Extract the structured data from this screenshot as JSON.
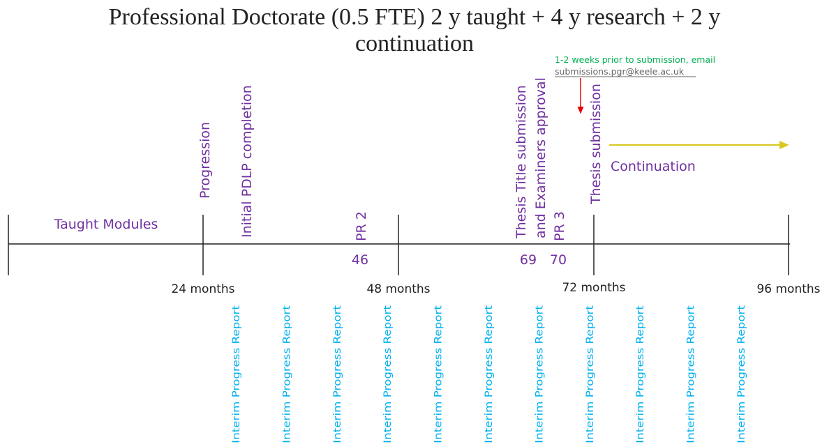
{
  "title": [
    "Professional Doctorate (0.5 FTE) 2 y taught + 4 y research + 2 y",
    "continuation"
  ],
  "note": {
    "text": "1-2 weeks prior to submission, email",
    "email": "submissions.pgr@keele.ac.uk"
  },
  "phases": [
    "Taught Modules",
    "Continuation"
  ],
  "milestones": [
    "Progression",
    "Initial PDLP completion",
    "PR 2",
    "Thesis Title submission",
    "and Examiners approval",
    "PR 3",
    "Thesis submission"
  ],
  "month_numbers": [
    "46",
    "69",
    "70"
  ],
  "month_labels": [
    "24 months",
    "48 months",
    "72 months",
    "96 months"
  ],
  "interim_reports": [
    "Interim Progress Report",
    "Interim Progress Report",
    "Interim Progress Report",
    "Interim Progress Report",
    "Interim Progress Report",
    "Interim Progress Report",
    "Interim Progress Report",
    "Interim Progress Report",
    "Interim Progress Report",
    "Interim Progress Report",
    "Interim Progress Report"
  ]
}
